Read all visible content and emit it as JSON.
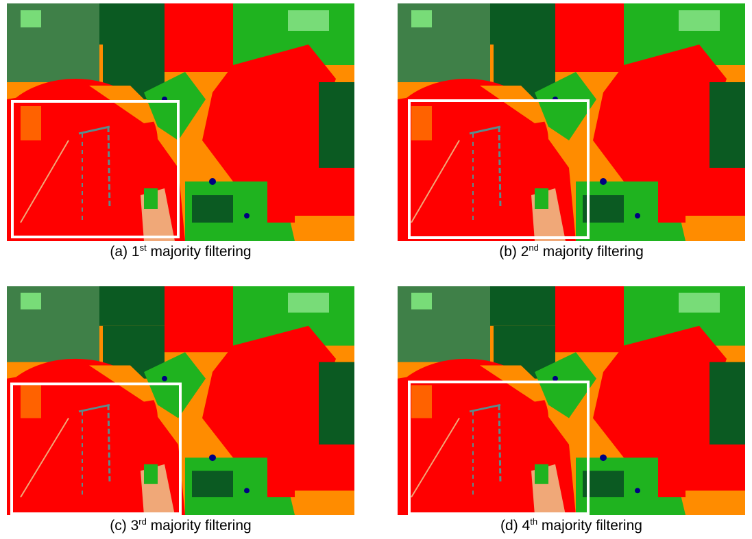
{
  "panels": [
    {
      "label": "(a) 1",
      "sup": "st",
      "rest": " majority filtering"
    },
    {
      "label": "(b) 2",
      "sup": "nd",
      "rest": " majority filtering"
    },
    {
      "label": "(c) 3",
      "sup": "rd",
      "rest": " majority filtering"
    },
    {
      "label": "(d) 4",
      "sup": "th",
      "rest": " majority filtering"
    }
  ]
}
